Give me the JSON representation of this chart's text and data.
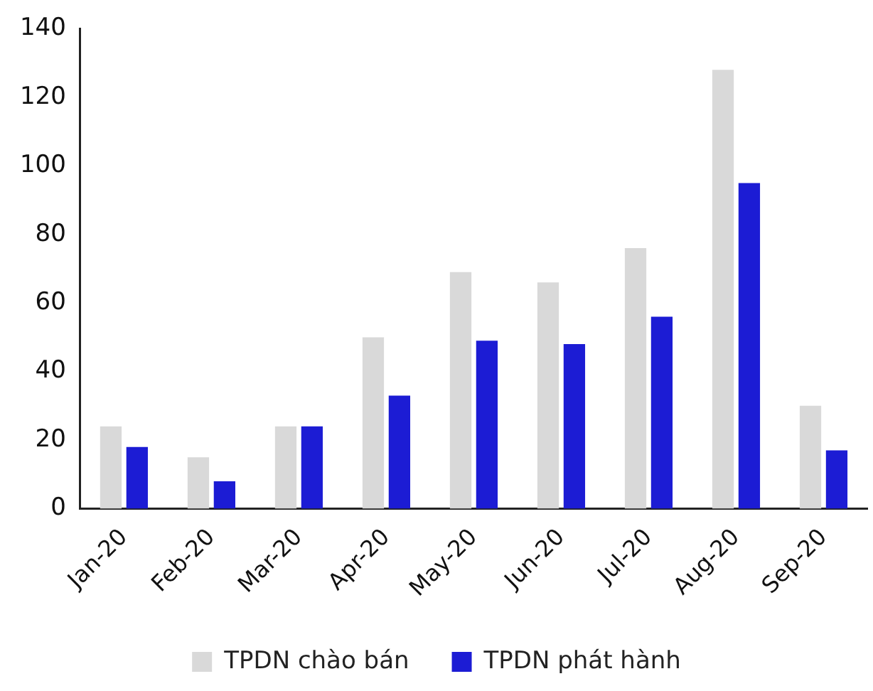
{
  "chart_data": {
    "type": "bar",
    "categories": [
      "Jan-20",
      "Feb-20",
      "Mar-20",
      "Apr-20",
      "May-20",
      "Jun-20",
      "Jul-20",
      "Aug-20",
      "Sep-20"
    ],
    "series": [
      {
        "name": "TPDN chào bán",
        "color": "#d9d9d9",
        "values": [
          24,
          15,
          24,
          50,
          69,
          66,
          76,
          128,
          30
        ]
      },
      {
        "name": "TPDN phát hành",
        "color": "#1c1cd4",
        "values": [
          18,
          8,
          24,
          33,
          49,
          48,
          56,
          95,
          17
        ]
      }
    ],
    "ylim": [
      0,
      140
    ],
    "yticks": [
      0,
      20,
      40,
      60,
      80,
      100,
      120,
      140
    ],
    "grid": false,
    "legend": "bottom"
  }
}
